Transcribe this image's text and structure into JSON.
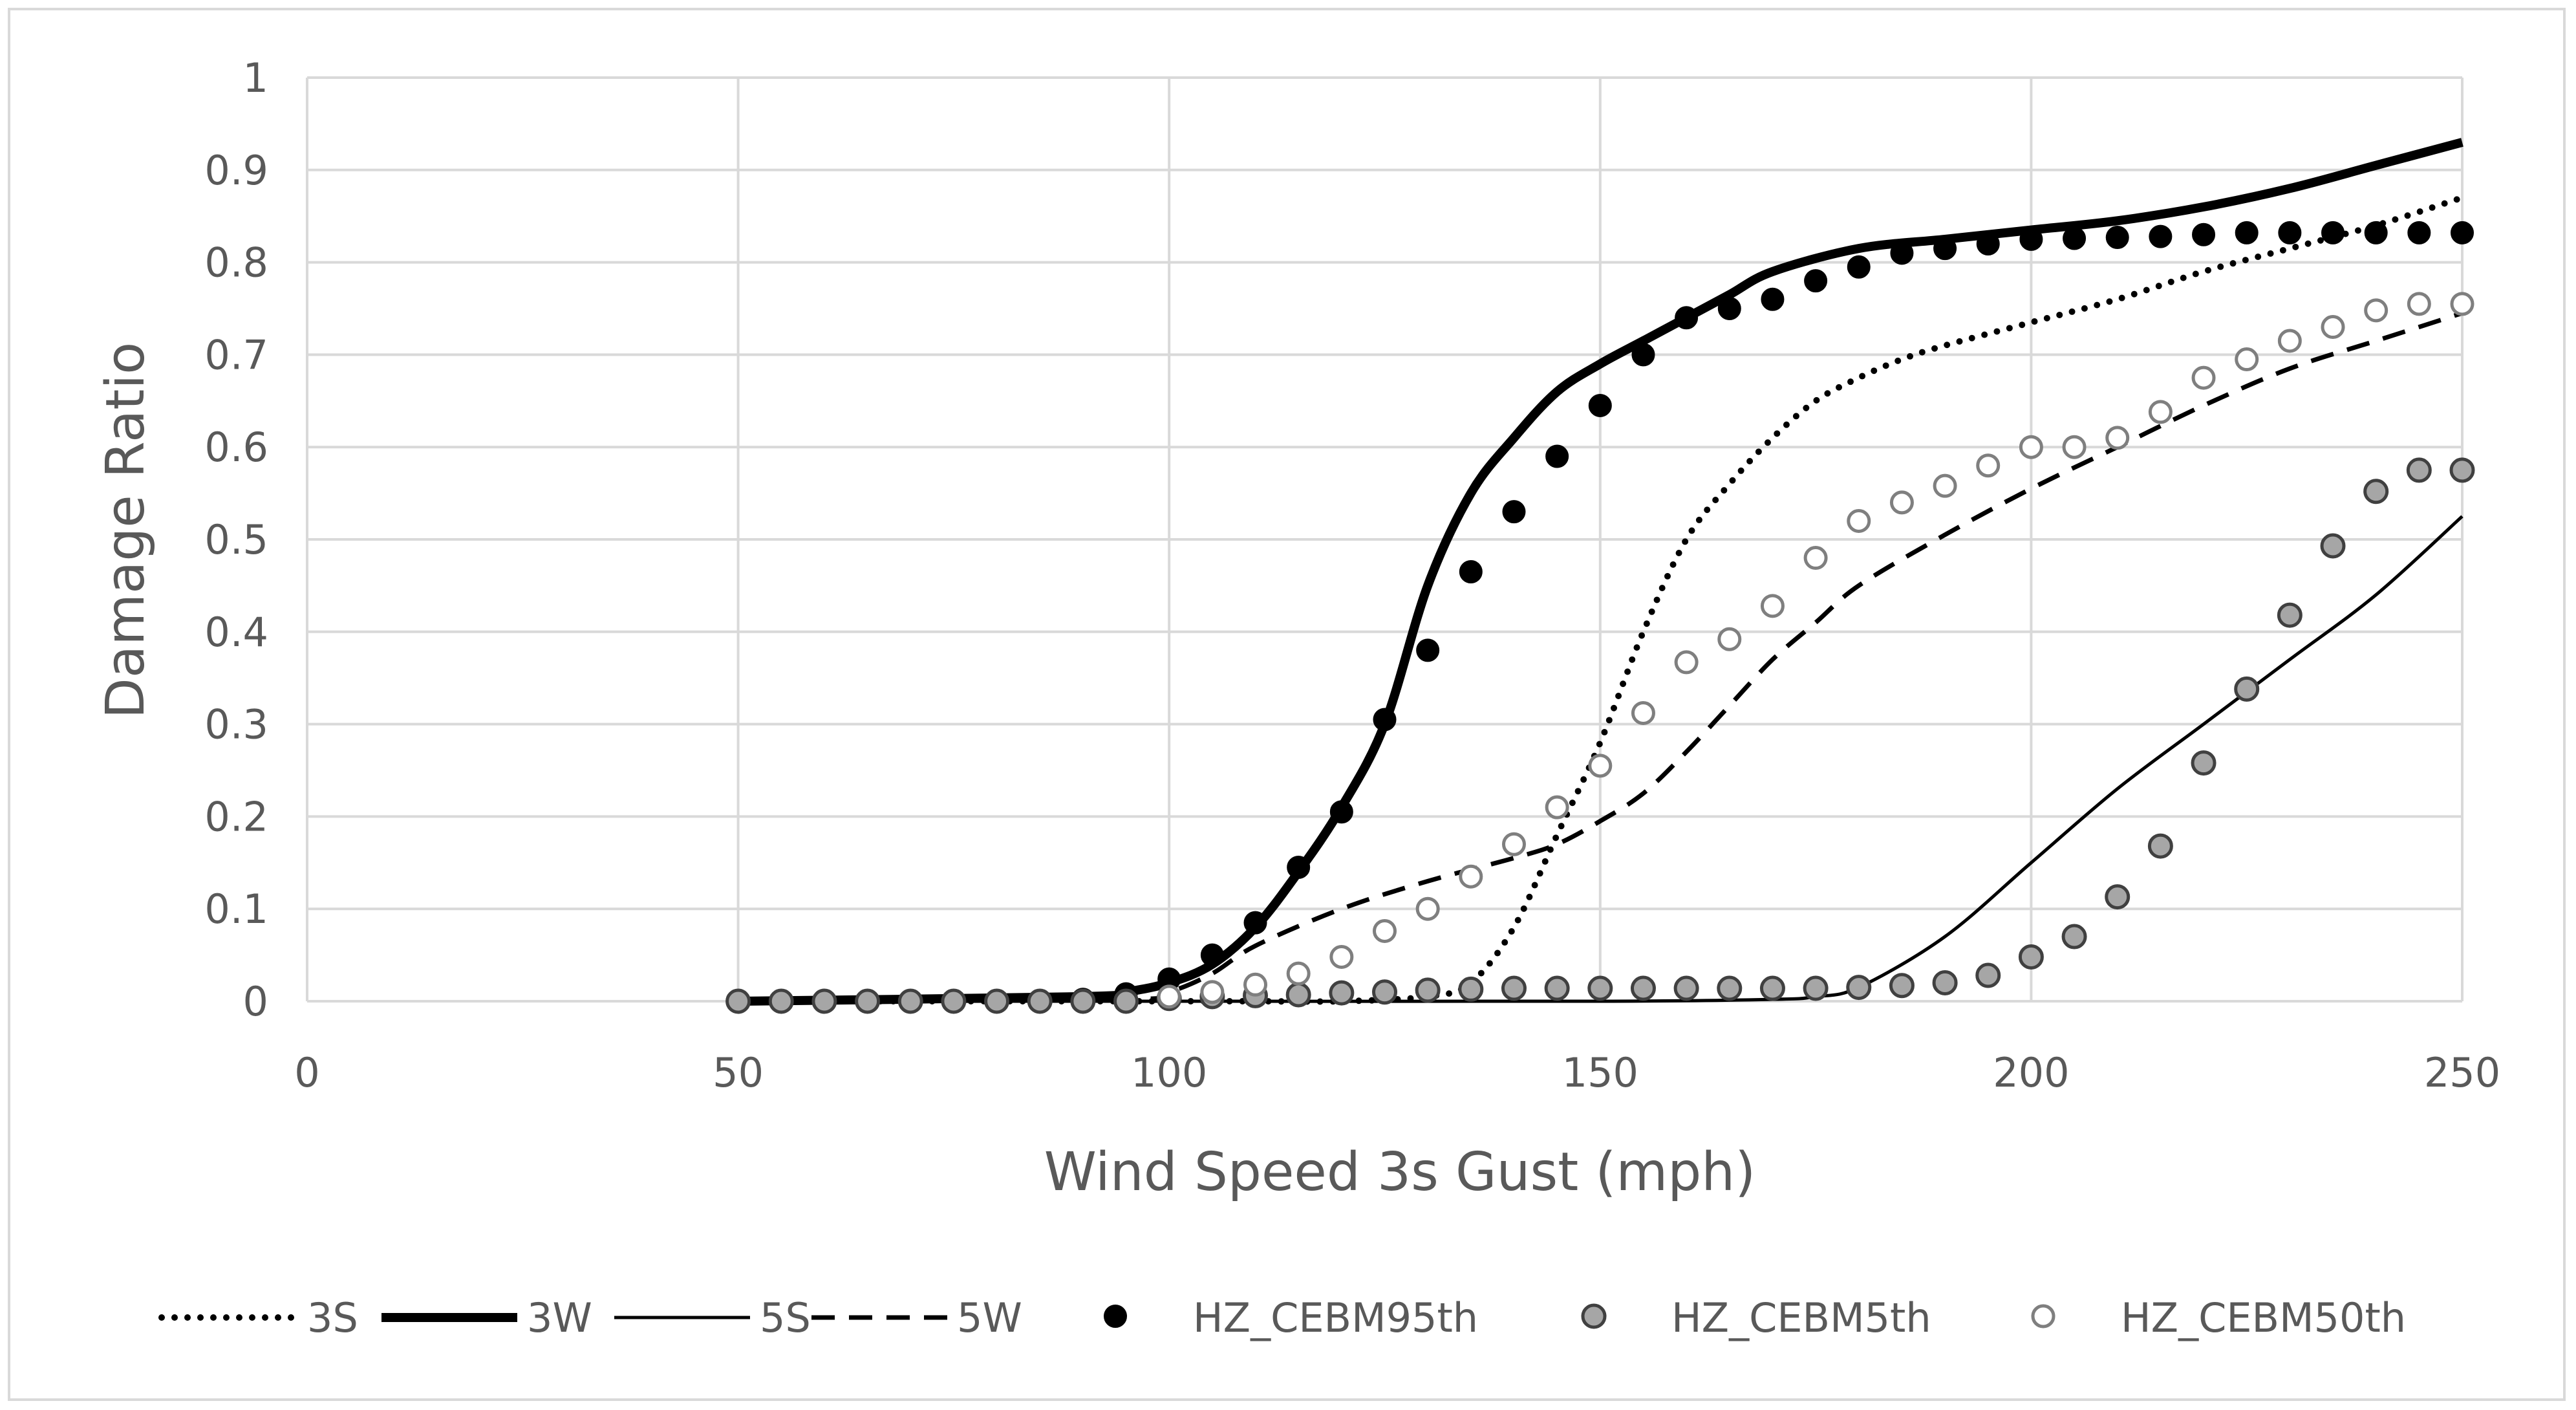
{
  "chart_data": {
    "type": "line",
    "title": "",
    "xlabel": "Wind Speed 3s Gust (mph)",
    "ylabel": "Damage Ratio",
    "xlim": [
      0,
      250
    ],
    "ylim": [
      0,
      1
    ],
    "xticks": [
      0,
      50,
      100,
      150,
      200,
      250
    ],
    "yticks": [
      0,
      0.1,
      0.2,
      0.3,
      0.4,
      0.5,
      0.6,
      0.7,
      0.8,
      0.9,
      1
    ],
    "grid": true,
    "legend_position": "bottom",
    "colors": {
      "axis": "#d9d9d9",
      "text": "#595959",
      "line": "#000000",
      "gray_fill": "#a6a6a6",
      "gray_edge": "#404040",
      "hollow_edge": "#7f7f7f"
    },
    "series": [
      {
        "name": "3S",
        "style": "dotted",
        "x": [
          50,
          90,
          100,
          110,
          120,
          130,
          135,
          140,
          145,
          150,
          155,
          160,
          165,
          170,
          175,
          180,
          185,
          190,
          200,
          210,
          220,
          230,
          240,
          250
        ],
        "y": [
          0,
          0,
          0,
          0,
          0,
          0.005,
          0.02,
          0.08,
          0.18,
          0.28,
          0.4,
          0.5,
          0.56,
          0.61,
          0.65,
          0.675,
          0.695,
          0.71,
          0.735,
          0.76,
          0.79,
          0.815,
          0.84,
          0.87
        ]
      },
      {
        "name": "3W",
        "style": "thick",
        "x": [
          50,
          90,
          95,
          100,
          105,
          110,
          115,
          120,
          125,
          130,
          135,
          140,
          145,
          150,
          155,
          160,
          165,
          170,
          180,
          190,
          200,
          210,
          220,
          230,
          240,
          250
        ],
        "y": [
          0,
          0.005,
          0.01,
          0.02,
          0.04,
          0.08,
          0.14,
          0.21,
          0.3,
          0.45,
          0.55,
          0.61,
          0.66,
          0.69,
          0.715,
          0.74,
          0.765,
          0.79,
          0.815,
          0.825,
          0.835,
          0.845,
          0.86,
          0.88,
          0.905,
          0.93
        ]
      },
      {
        "name": "5S",
        "style": "thin",
        "x": [
          50,
          100,
          150,
          170,
          175,
          180,
          190,
          200,
          210,
          220,
          230,
          240,
          250
        ],
        "y": [
          0,
          0,
          0,
          0.002,
          0.005,
          0.015,
          0.07,
          0.15,
          0.23,
          0.3,
          0.37,
          0.44,
          0.525
        ]
      },
      {
        "name": "5W",
        "style": "dashed",
        "x": [
          50,
          95,
          100,
          105,
          110,
          120,
          130,
          140,
          145,
          150,
          155,
          160,
          165,
          170,
          175,
          180,
          190,
          200,
          210,
          220,
          230,
          240,
          250
        ],
        "y": [
          0,
          0.002,
          0.01,
          0.03,
          0.06,
          0.1,
          0.13,
          0.155,
          0.17,
          0.195,
          0.225,
          0.27,
          0.32,
          0.37,
          0.41,
          0.45,
          0.505,
          0.555,
          0.6,
          0.645,
          0.685,
          0.715,
          0.745
        ]
      },
      {
        "name": "HZ_CEBM95th",
        "style": "marker-filled-black",
        "x": [
          50,
          55,
          60,
          65,
          70,
          75,
          80,
          85,
          90,
          95,
          100,
          105,
          110,
          115,
          120,
          125,
          130,
          135,
          140,
          145,
          150,
          155,
          160,
          165,
          170,
          175,
          180,
          185,
          190,
          195,
          200,
          205,
          210,
          215,
          220,
          225,
          230,
          235,
          240,
          245,
          250
        ],
        "y": [
          0,
          0,
          0,
          0,
          0,
          0,
          0,
          0,
          0.002,
          0.008,
          0.024,
          0.05,
          0.085,
          0.145,
          0.205,
          0.305,
          0.38,
          0.465,
          0.53,
          0.59,
          0.645,
          0.7,
          0.74,
          0.75,
          0.76,
          0.78,
          0.795,
          0.81,
          0.815,
          0.82,
          0.825,
          0.826,
          0.827,
          0.828,
          0.83,
          0.832,
          0.832,
          0.832,
          0.832,
          0.832,
          0.832
        ]
      },
      {
        "name": "HZ_CEBM5th",
        "style": "marker-filled-gray",
        "x": [
          50,
          55,
          60,
          65,
          70,
          75,
          80,
          85,
          90,
          95,
          100,
          105,
          110,
          115,
          120,
          125,
          130,
          135,
          140,
          145,
          150,
          155,
          160,
          165,
          170,
          175,
          180,
          185,
          190,
          195,
          200,
          205,
          210,
          215,
          220,
          225,
          230,
          235,
          240,
          245,
          250
        ],
        "y": [
          0,
          0,
          0,
          0,
          0,
          0,
          0,
          0,
          0,
          0,
          0.003,
          0.005,
          0.006,
          0.007,
          0.009,
          0.01,
          0.012,
          0.013,
          0.014,
          0.014,
          0.014,
          0.014,
          0.014,
          0.014,
          0.014,
          0.014,
          0.015,
          0.017,
          0.02,
          0.028,
          0.048,
          0.07,
          0.113,
          0.168,
          0.258,
          0.338,
          0.418,
          0.493,
          0.552,
          0.575,
          0.575
        ]
      },
      {
        "name": "HZ_CEBM50th",
        "style": "marker-hollow",
        "x": [
          100,
          105,
          110,
          115,
          120,
          125,
          130,
          135,
          140,
          145,
          150,
          155,
          160,
          165,
          170,
          175,
          180,
          185,
          190,
          195,
          200,
          205,
          210,
          215,
          220,
          225,
          230,
          235,
          240,
          245,
          250
        ],
        "y": [
          0.005,
          0.01,
          0.018,
          0.03,
          0.048,
          0.076,
          0.1,
          0.135,
          0.17,
          0.21,
          0.255,
          0.312,
          0.367,
          0.392,
          0.428,
          0.48,
          0.52,
          0.54,
          0.558,
          0.58,
          0.6,
          0.6,
          0.61,
          0.638,
          0.675,
          0.695,
          0.715,
          0.73,
          0.748,
          0.755,
          0.755
        ]
      }
    ]
  }
}
